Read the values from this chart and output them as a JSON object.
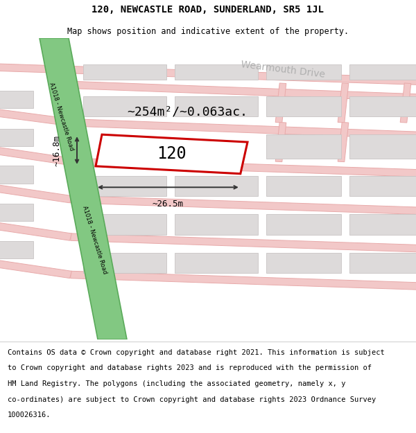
{
  "title": "120, NEWCASTLE ROAD, SUNDERLAND, SR5 1JL",
  "subtitle": "Map shows position and indicative extent of the property.",
  "background_color": "white",
  "map_bg": "#f2f0f0",
  "road_green_color": "#82c882",
  "road_green_border": "#5aaa5a",
  "road_pink_color": "#f2c8c8",
  "road_outline_color": "#e8aaaa",
  "building_fill": "#dddada",
  "building_outline": "#c8c4c4",
  "property_outline": "#cc0000",
  "property_fill": "white",
  "property_label": "120",
  "area_text": "~254m²/~0.063ac.",
  "dim_width_text": "~26.5m",
  "dim_height_text": "~16.8m",
  "road_label_1": "A1018 - Newcastle Road",
  "road_label_2": "A1018 - Newcastle Road",
  "street_label": "Wearmouth Drive",
  "footer_lines": [
    "Contains OS data © Crown copyright and database right 2021. This information is subject",
    "to Crown copyright and database rights 2023 and is reproduced with the permission of",
    "HM Land Registry. The polygons (including the associated geometry, namely x, y",
    "co-ordinates) are subject to Crown copyright and database rights 2023 Ordnance Survey",
    "100026316."
  ],
  "title_fontsize": 10,
  "subtitle_fontsize": 8.5,
  "footer_fontsize": 7.5
}
